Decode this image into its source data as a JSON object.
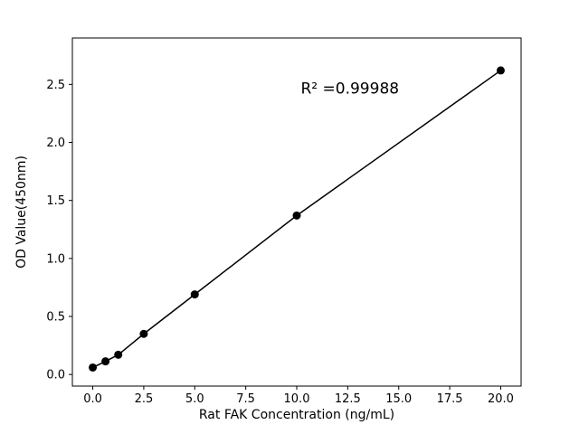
{
  "figure": {
    "background": "#ffffff",
    "foreground": "#000000"
  },
  "chart_data": {
    "type": "scatter",
    "subtype": "scatter-with-fit-line",
    "x": [
      0,
      0.625,
      1.25,
      2.5,
      5,
      10,
      20
    ],
    "y": [
      0.06,
      0.113,
      0.17,
      0.35,
      0.69,
      1.37,
      2.62
    ],
    "title": "",
    "xlabel": "Rat FAK Concentration (ng/mL)",
    "ylabel": "OD Value(450nm)",
    "xlim": [
      -1,
      21
    ],
    "ylim": [
      -0.1,
      2.9
    ],
    "xticks": [
      0.0,
      2.5,
      5.0,
      7.5,
      10.0,
      12.5,
      15.0,
      17.5,
      20.0
    ],
    "xtick_labels": [
      "0.0",
      "2.5",
      "5.0",
      "7.5",
      "10.0",
      "12.5",
      "15.0",
      "17.5",
      "20.0"
    ],
    "yticks": [
      0.0,
      0.5,
      1.0,
      1.5,
      2.0,
      2.5
    ],
    "ytick_labels": [
      "0.0",
      "0.5",
      "1.0",
      "1.5",
      "2.0",
      "2.5"
    ],
    "annotation": {
      "text": "R² =0.99988",
      "x": 10.2,
      "y": 2.42
    },
    "grid": false,
    "legend": null,
    "line_color": "#000000",
    "marker_color": "#000000",
    "marker_radius": 4.5
  }
}
